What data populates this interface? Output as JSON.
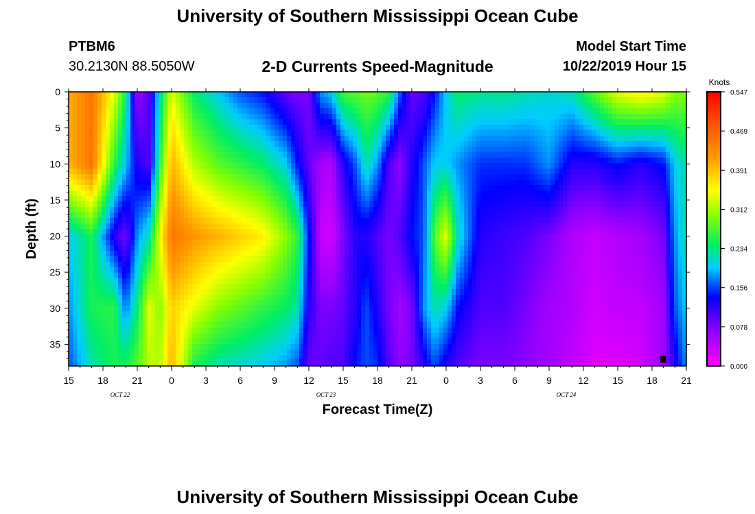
{
  "header": {
    "title": "University of Southern Mississippi Ocean Cube",
    "station_id": "PTBM6",
    "coordinates": "30.2130N 88.5050W",
    "model_start_label": "Model Start Time",
    "model_start_value": "10/22/2019 Hour 15"
  },
  "footer": {
    "title": "University of Southern Mississippi Ocean Cube"
  },
  "chart_data": {
    "type": "heatmap",
    "title": "2-D Currents Speed-Magnitude",
    "xlabel": "Forecast Time(Z)",
    "ylabel": "Depth (ft)",
    "x_ticks": [
      "15",
      "18",
      "21",
      "0",
      "3",
      "6",
      "9",
      "12",
      "15",
      "18",
      "21",
      "0",
      "3",
      "6",
      "9",
      "12",
      "15",
      "18",
      "21"
    ],
    "date_labels": [
      {
        "label": "OCT  22",
        "after_tick": 1
      },
      {
        "label": "OCT  23",
        "after_tick": 7
      },
      {
        "label": "OCT  24",
        "after_tick": 14
      }
    ],
    "y_ticks": [
      0,
      5,
      10,
      15,
      20,
      25,
      30,
      35
    ],
    "ylim": [
      0,
      38
    ],
    "colorbar": {
      "unit": "Knots",
      "ticks": [
        "0.547",
        "0.469",
        "0.391",
        "0.312",
        "0.234",
        "0.156",
        "0.078",
        "0.000"
      ],
      "range": [
        0,
        0.547
      ]
    },
    "depths": [
      0,
      10,
      20,
      30,
      38
    ],
    "columns": [
      {
        "h": 0,
        "v": [
          0.4,
          0.4,
          0.2,
          0.18,
          0.16
        ]
      },
      {
        "h": 2,
        "v": [
          0.45,
          0.45,
          0.25,
          0.25,
          0.22
        ]
      },
      {
        "h": 4,
        "v": [
          0.34,
          0.26,
          0.12,
          0.26,
          0.25
        ]
      },
      {
        "h": 5,
        "v": [
          0.25,
          0.2,
          0.08,
          0.17,
          0.25
        ]
      },
      {
        "h": 6,
        "v": [
          0.06,
          0.12,
          0.18,
          0.24,
          0.28
        ]
      },
      {
        "h": 7,
        "v": [
          0.1,
          0.1,
          0.22,
          0.34,
          0.32
        ]
      },
      {
        "h": 8,
        "v": [
          0.22,
          0.26,
          0.35,
          0.3,
          0.32
        ]
      },
      {
        "h": 9,
        "v": [
          0.34,
          0.4,
          0.45,
          0.38,
          0.4
        ]
      },
      {
        "h": 11,
        "v": [
          0.24,
          0.32,
          0.42,
          0.34,
          0.25
        ]
      },
      {
        "h": 13,
        "v": [
          0.2,
          0.28,
          0.4,
          0.3,
          0.22
        ]
      },
      {
        "h": 15,
        "v": [
          0.16,
          0.26,
          0.38,
          0.28,
          0.21
        ]
      },
      {
        "h": 17,
        "v": [
          0.14,
          0.24,
          0.36,
          0.26,
          0.2
        ]
      },
      {
        "h": 19,
        "v": [
          0.09,
          0.2,
          0.3,
          0.24,
          0.18
        ]
      },
      {
        "h": 20,
        "v": [
          0.08,
          0.14,
          0.26,
          0.22,
          0.16
        ]
      },
      {
        "h": 21,
        "v": [
          0.08,
          0.09,
          0.14,
          0.12,
          0.09
        ]
      },
      {
        "h": 22,
        "v": [
          0.18,
          0.06,
          0.04,
          0.08,
          0.09
        ]
      },
      {
        "h": 23,
        "v": [
          0.2,
          0.05,
          0.03,
          0.08,
          0.1
        ]
      },
      {
        "h": 24,
        "v": [
          0.27,
          0.12,
          0.08,
          0.09,
          0.1
        ]
      },
      {
        "h": 25,
        "v": [
          0.28,
          0.16,
          0.12,
          0.12,
          0.14
        ]
      },
      {
        "h": 26,
        "v": [
          0.29,
          0.22,
          0.12,
          0.16,
          0.16
        ]
      },
      {
        "h": 27,
        "v": [
          0.28,
          0.18,
          0.1,
          0.12,
          0.15
        ]
      },
      {
        "h": 28,
        "v": [
          0.26,
          0.1,
          0.08,
          0.08,
          0.1
        ]
      },
      {
        "h": 29,
        "v": [
          0.16,
          0.07,
          0.1,
          0.06,
          0.07
        ]
      },
      {
        "h": 30,
        "v": [
          0.09,
          0.12,
          0.14,
          0.08,
          0.08
        ]
      },
      {
        "h": 31,
        "v": [
          0.1,
          0.16,
          0.16,
          0.18,
          0.12
        ]
      },
      {
        "h": 32,
        "v": [
          0.14,
          0.2,
          0.28,
          0.22,
          0.16
        ]
      },
      {
        "h": 33,
        "v": [
          0.2,
          0.2,
          0.34,
          0.2,
          0.12
        ]
      },
      {
        "h": 34,
        "v": [
          0.24,
          0.18,
          0.22,
          0.14,
          0.1
        ]
      },
      {
        "h": 36,
        "v": [
          0.23,
          0.15,
          0.12,
          0.1,
          0.08
        ]
      },
      {
        "h": 38,
        "v": [
          0.23,
          0.15,
          0.11,
          0.1,
          0.08
        ]
      },
      {
        "h": 40,
        "v": [
          0.22,
          0.15,
          0.1,
          0.08,
          0.07
        ]
      },
      {
        "h": 42,
        "v": [
          0.21,
          0.18,
          0.08,
          0.06,
          0.06
        ]
      },
      {
        "h": 44,
        "v": [
          0.22,
          0.12,
          0.05,
          0.05,
          0.04
        ]
      },
      {
        "h": 46,
        "v": [
          0.28,
          0.12,
          0.04,
          0.03,
          0.02
        ]
      },
      {
        "h": 48,
        "v": [
          0.34,
          0.14,
          0.05,
          0.04,
          0.02
        ]
      },
      {
        "h": 50,
        "v": [
          0.36,
          0.12,
          0.06,
          0.04,
          0.03
        ]
      },
      {
        "h": 52,
        "v": [
          0.34,
          0.14,
          0.08,
          0.06,
          0.06
        ]
      },
      {
        "h": 53,
        "v": [
          0.3,
          0.2,
          0.18,
          0.16,
          0.12
        ]
      },
      {
        "h": 54,
        "v": [
          0.3,
          0.22,
          0.22,
          0.2,
          0.18
        ]
      }
    ]
  }
}
